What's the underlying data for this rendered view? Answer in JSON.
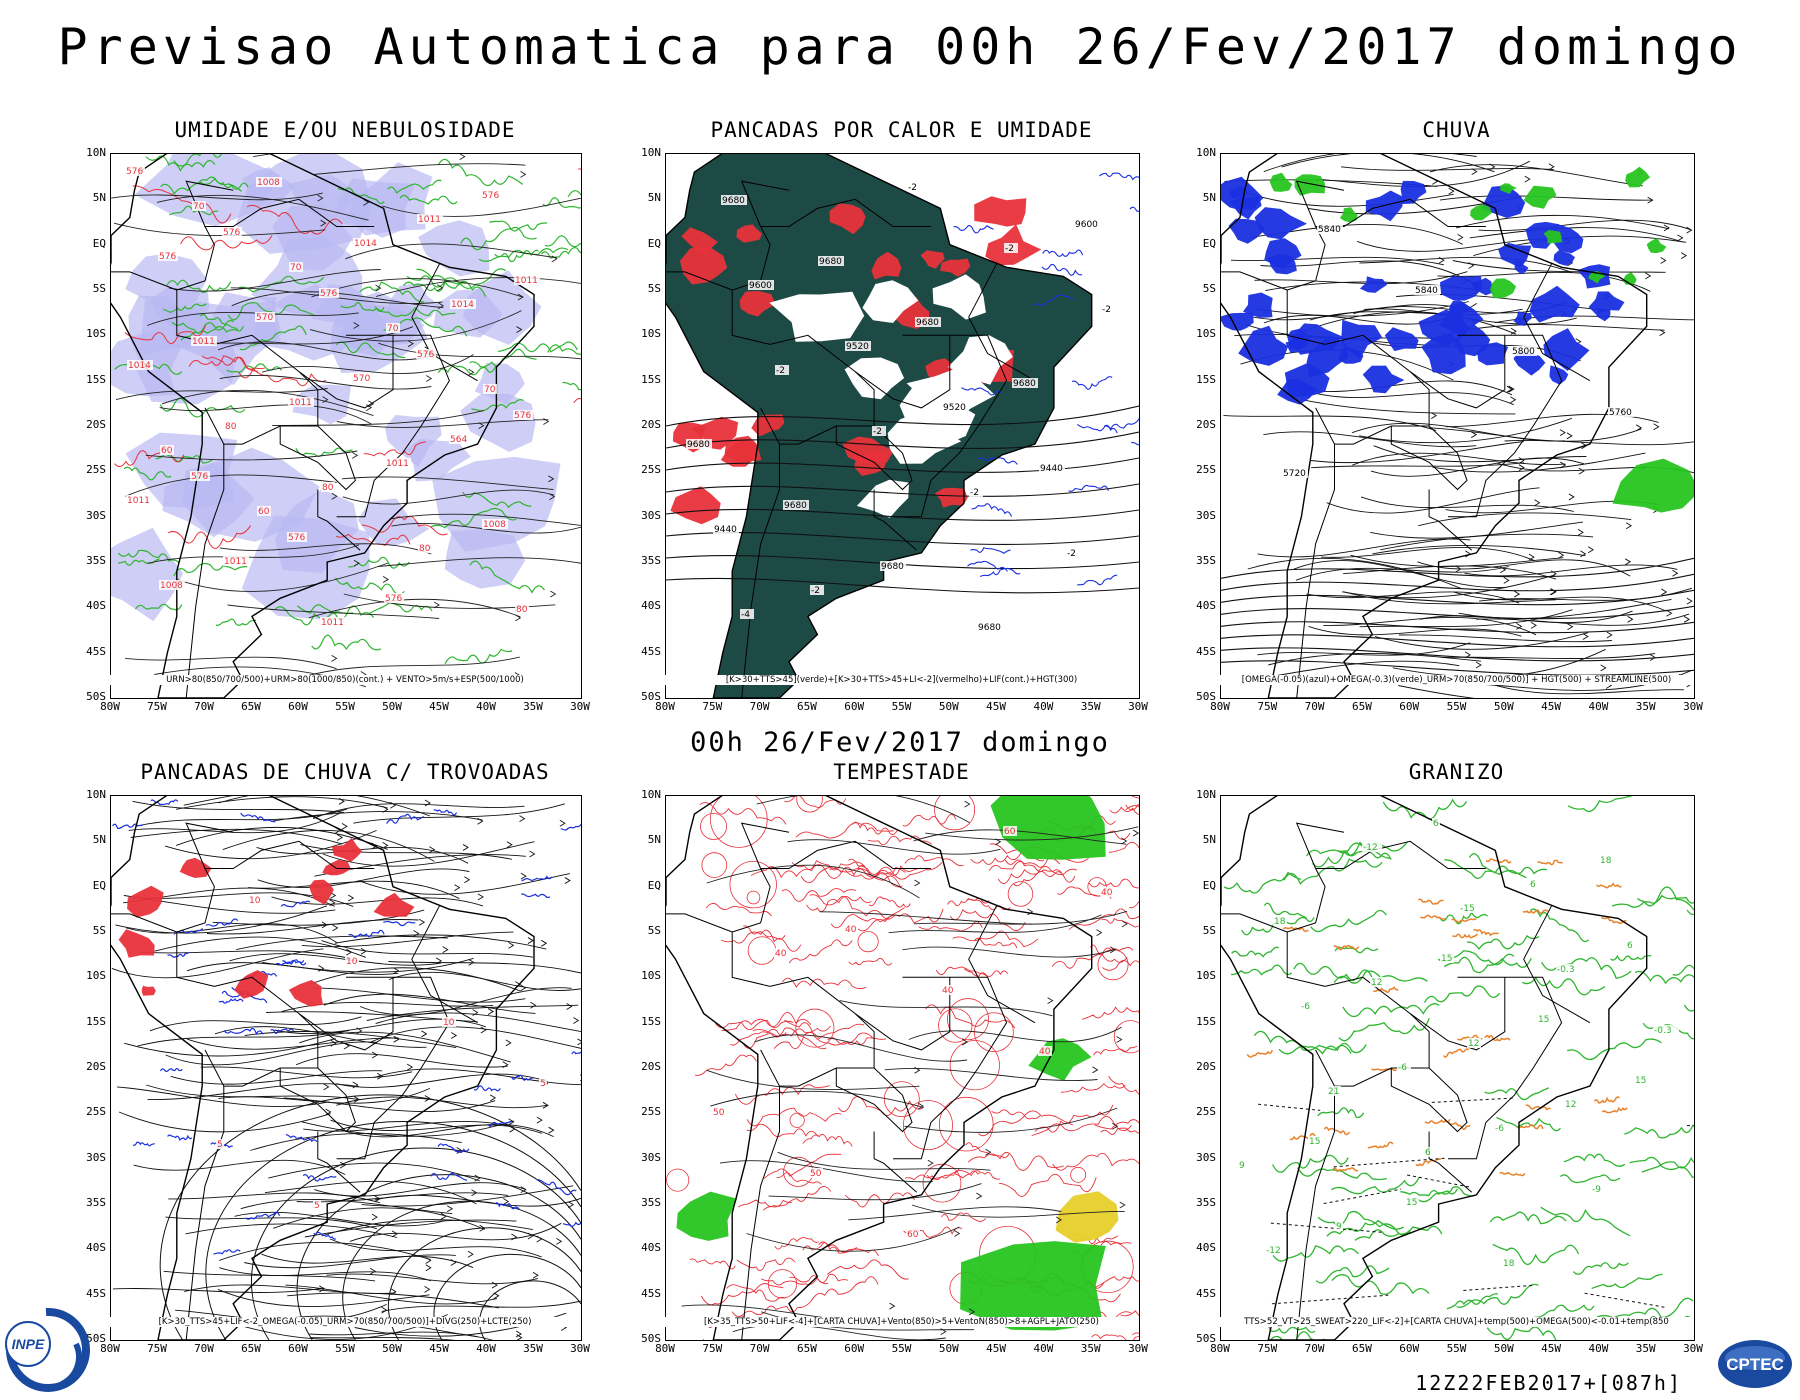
{
  "header": {
    "title": "Previsao Automatica  para 00h 26/Fev/2017 domingo",
    "mid_date": "00h 26/Fev/2017 domingo",
    "run": "12Z22FEB2017+[087h]"
  },
  "axes": {
    "lat_labels": [
      "10N",
      "5N",
      "EQ",
      "5S",
      "10S",
      "15S",
      "20S",
      "25S",
      "30S",
      "35S",
      "40S",
      "45S",
      "50S"
    ],
    "lon_labels": [
      "80W",
      "75W",
      "70W",
      "65W",
      "60W",
      "55W",
      "50W",
      "45W",
      "40W",
      "35W",
      "30W"
    ]
  },
  "panels": [
    {
      "title": "UMIDADE E/OU NEBULOSIDADE",
      "legend": "URN>80(850/700/500)+URM>80(1000/850)(cont.) + VENTO>5m/s+ESP(500/1000)",
      "labels": [
        "576",
        "576",
        "576",
        "576",
        "576",
        "576",
        "576",
        "576",
        "576",
        "576",
        "570",
        "570",
        "564",
        "1011",
        "1011",
        "1011",
        "1011",
        "1011",
        "1011",
        "1011",
        "1011",
        "1008",
        "1008",
        "1008",
        "1014",
        "1014",
        "1014",
        "80",
        "80",
        "80",
        "80",
        "70",
        "70",
        "70",
        "70",
        "60",
        "60"
      ]
    },
    {
      "title": "PANCADAS POR CALOR E UMIDADE",
      "legend": "[K>30+TTS>45](verde)+[K>30+TTS>45+LI<-2](vermelho)+LIF(cont.)+HGT(300)",
      "labels": [
        "9680",
        "9680",
        "9680",
        "9680",
        "9680",
        "9680",
        "9680",
        "9680",
        "9600",
        "9600",
        "9520",
        "9520",
        "9440",
        "9440",
        "-2",
        "-2",
        "-2",
        "-2",
        "-2",
        "-2",
        "-2",
        "-2",
        "-4"
      ]
    },
    {
      "title": "CHUVA",
      "legend": "[OMEGA(-0.05)(azul)+OMEGA(-0.3)(verde)_URM>70(850/700/500)] + HGT(500) + STREAMLINE(500)",
      "labels": [
        "5840",
        "5840",
        "5800",
        "5760",
        "5720"
      ]
    },
    {
      "title": "PANCADAS DE CHUVA C/ TROVOADAS",
      "legend": "[K>30_TTS>45+LIF<-2_OMEGA(-0.05)_URM>70(850/700/500)]+DIVG(250)+LCTE(250)",
      "labels": [
        "10",
        "10",
        "10",
        "5",
        "5",
        "5"
      ]
    },
    {
      "title": "TEMPESTADE",
      "legend": "[K>35_TTS>50+LIF<-4]+[CARTA CHUVA]+Vento(850)>5+VentoN(850)>8+AGPL+JATO(250)",
      "labels": [
        "40",
        "40",
        "40",
        "50",
        "50",
        "60",
        "60",
        "40",
        "40"
      ]
    },
    {
      "title": "GRANIZO",
      "legend": "TTS>52_VT>25_SWEAT>220_LIF<-2]+[CARTA CHUVA]+temp(500)+OMEGA(500)<-0.01+temp(850",
      "labels": [
        "15",
        "15",
        "15",
        "15",
        "15",
        "18",
        "18",
        "18",
        "12",
        "12",
        "12",
        "9",
        "9",
        "6",
        "6",
        "6",
        "-6",
        "-6",
        "-6",
        "-9",
        "-12",
        "-12",
        "-15",
        "-0.3",
        "-0.3",
        "21",
        "6"
      ]
    }
  ],
  "logos": {
    "left": "INPE",
    "right": "CPTEC"
  },
  "colors": {
    "red": "#e8313a",
    "green": "#2fb52f",
    "blue": "#1a2fe0",
    "lavender": "#b9b9f2",
    "darkteal": "#1e4a46",
    "orange": "#e8822a",
    "bright_green": "#27c41f",
    "yellow": "#e6cf2a"
  }
}
